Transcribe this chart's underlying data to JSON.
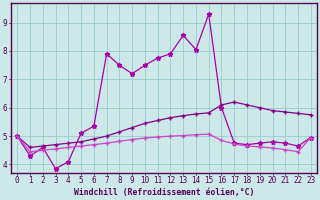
{
  "xlabel": "Windchill (Refroidissement éolien,°C)",
  "xlim": [
    -0.5,
    23.5
  ],
  "ylim": [
    3.7,
    9.7
  ],
  "xticks": [
    0,
    1,
    2,
    3,
    4,
    5,
    6,
    7,
    8,
    9,
    10,
    11,
    12,
    13,
    14,
    15,
    16,
    17,
    18,
    19,
    20,
    21,
    22,
    23
  ],
  "yticks": [
    4,
    5,
    6,
    7,
    8,
    9
  ],
  "bg_color": "#cce8e8",
  "grid_color": "#99cccc",
  "line1_color": "#aa00aa",
  "line2_color": "#880088",
  "line3_color": "#cc44cc",
  "series1_x": [
    0,
    1,
    2,
    3,
    4,
    5,
    6,
    7,
    8,
    9,
    10,
    11,
    12,
    13,
    14,
    15,
    16,
    17,
    18,
    19,
    20,
    21,
    22,
    23
  ],
  "series1_y": [
    5.0,
    4.3,
    4.6,
    3.85,
    4.1,
    5.1,
    5.35,
    7.9,
    7.5,
    7.2,
    7.5,
    7.75,
    7.9,
    8.55,
    8.05,
    9.3,
    6.0,
    4.75,
    4.7,
    4.75,
    4.8,
    4.75,
    4.65,
    4.95
  ],
  "series2_x": [
    0,
    1,
    2,
    3,
    4,
    5,
    6,
    7,
    8,
    9,
    10,
    11,
    12,
    13,
    14,
    15,
    16,
    17,
    18,
    19,
    20,
    21,
    22,
    23
  ],
  "series2_y": [
    5.0,
    4.6,
    4.65,
    4.7,
    4.75,
    4.8,
    4.9,
    5.0,
    5.15,
    5.3,
    5.45,
    5.55,
    5.65,
    5.72,
    5.78,
    5.82,
    6.1,
    6.2,
    6.1,
    6.0,
    5.9,
    5.85,
    5.8,
    5.75
  ],
  "series3_x": [
    0,
    1,
    2,
    3,
    4,
    5,
    6,
    7,
    8,
    9,
    10,
    11,
    12,
    13,
    14,
    15,
    16,
    17,
    18,
    19,
    20,
    21,
    22,
    23
  ],
  "series3_y": [
    5.0,
    4.45,
    4.5,
    4.55,
    4.6,
    4.65,
    4.7,
    4.75,
    4.82,
    4.88,
    4.93,
    4.97,
    5.0,
    5.02,
    5.05,
    5.07,
    4.85,
    4.72,
    4.65,
    4.62,
    4.58,
    4.52,
    4.45,
    4.95
  ]
}
